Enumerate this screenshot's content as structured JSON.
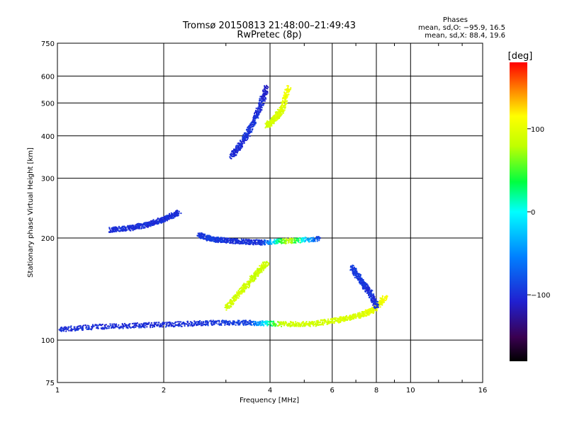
{
  "chart_data": {
    "type": "scatter",
    "title": "Tromsø 20150813 21:48:00–21:49:43",
    "subtitle": "RwPretec (8p)",
    "xlabel": "Frequency [MHz]",
    "ylabel": "Stationary phase Virtual Height [km]",
    "x_scale": "log",
    "y_scale": "log",
    "xlim": [
      1,
      16
    ],
    "ylim": [
      75,
      750
    ],
    "x_ticks": [
      1,
      2,
      4,
      6,
      8,
      10,
      16
    ],
    "x_tick_labels": [
      "1",
      "2",
      "4",
      "6",
      "8",
      "10",
      "16"
    ],
    "y_ticks": [
      75,
      100,
      200,
      300,
      400,
      500,
      600,
      750
    ],
    "y_tick_labels": [
      "75",
      "100",
      "200",
      "300",
      "400",
      "500",
      "600",
      "750"
    ],
    "grid": true,
    "stats": {
      "heading": "Phases",
      "line_o": "mean, sd,O: −95.9, 16.5",
      "line_x": "mean, sd,X:  88.4, 19.6"
    },
    "colorbar": {
      "label": "[deg]",
      "range": [
        -180,
        180
      ],
      "tick_values": [
        100,
        0,
        -100
      ],
      "tick_labels": [
        "100",
        "0",
        "−100"
      ]
    },
    "traces": [
      {
        "x": [
          1.0,
          1.3,
          1.7,
          2.2,
          2.8,
          3.5,
          4.3,
          5.2,
          6.2,
          7.0,
          7.8,
          8.5
        ],
        "y": [
          108,
          110,
          111,
          112,
          113,
          113,
          112,
          112,
          115,
          118,
          123,
          135
        ],
        "phase": [
          -100,
          -100,
          -100,
          -100,
          -95,
          -90,
          85,
          90,
          92,
          95,
          100,
          110
        ]
      },
      {
        "x": [
          1.4,
          1.6,
          1.8,
          2.0,
          2.2
        ],
        "y": [
          212,
          215,
          220,
          228,
          240
        ],
        "phase": [
          -100,
          -100,
          -100,
          -100,
          -100
        ]
      },
      {
        "x": [
          2.5,
          2.7,
          2.9,
          3.3,
          3.8,
          4.5,
          5.5
        ],
        "y": [
          205,
          200,
          198,
          196,
          195,
          197,
          200
        ],
        "phase": [
          -95,
          -90,
          -95,
          -100,
          -95,
          90,
          -100
        ]
      },
      {
        "x": [
          3.1,
          3.3,
          3.5,
          3.7,
          3.9
        ],
        "y": [
          350,
          380,
          420,
          480,
          560
        ],
        "phase": [
          -105,
          -100,
          -95,
          -100,
          -110
        ]
      },
      {
        "x": [
          3.9,
          4.1,
          4.3,
          4.5
        ],
        "y": [
          430,
          450,
          480,
          560
        ],
        "phase": [
          88,
          90,
          95,
          110
        ]
      },
      {
        "x": [
          3.0,
          3.3,
          3.6,
          3.9
        ],
        "y": [
          125,
          140,
          155,
          170
        ],
        "phase": [
          88,
          90,
          85,
          90
        ]
      },
      {
        "x": [
          6.8,
          7.2,
          7.6,
          8.0
        ],
        "y": [
          165,
          150,
          140,
          125
        ],
        "phase": [
          -90,
          -95,
          -100,
          -95
        ]
      }
    ]
  }
}
